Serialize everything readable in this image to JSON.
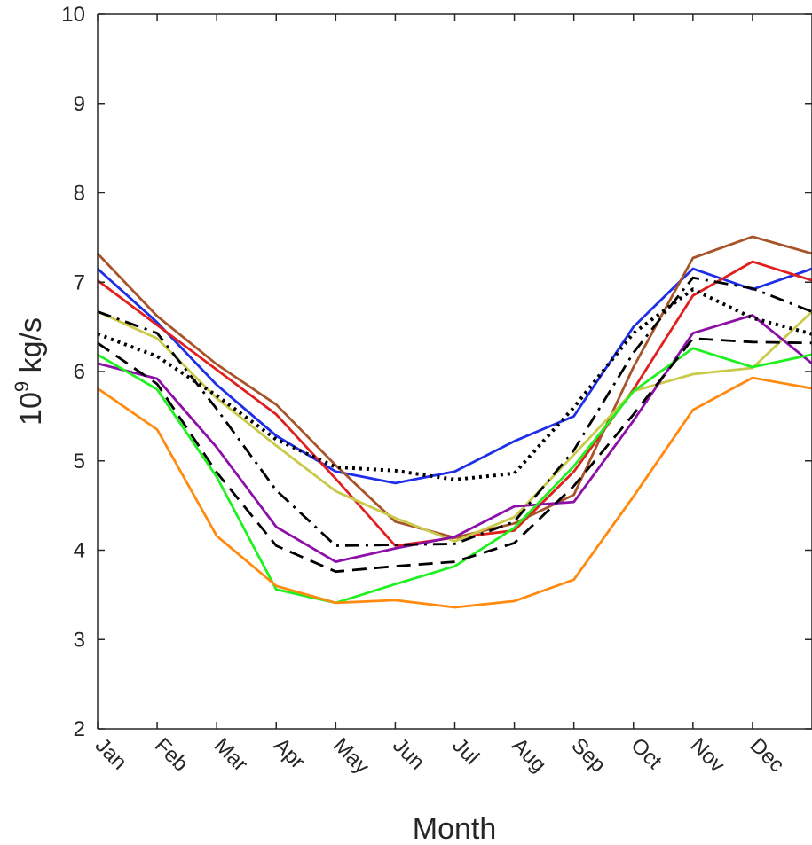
{
  "chart_data": {
    "type": "line",
    "title": "",
    "xlabel": "Month",
    "ylabel_base": "10",
    "ylabel_exp": "9",
    "ylabel_unit": " kg/s",
    "ylim": [
      2,
      10
    ],
    "xlim": [
      1,
      13
    ],
    "yticks": [
      2,
      3,
      4,
      5,
      6,
      7,
      8,
      9,
      10
    ],
    "categories": [
      "Jan",
      "Feb",
      "Mar",
      "Apr",
      "May",
      "Jun",
      "Jul",
      "Aug",
      "Sep",
      "Oct",
      "Nov",
      "Dec"
    ],
    "x": [
      1,
      2,
      3,
      4,
      5,
      6,
      7,
      8,
      9,
      10,
      11,
      12,
      13
    ],
    "grid": false,
    "series": [
      {
        "color": "#1f2ee8",
        "dash": "solid",
        "values": [
          7.15,
          6.55,
          5.85,
          5.28,
          4.88,
          4.75,
          4.88,
          5.22,
          5.5,
          6.5,
          7.15,
          6.92,
          7.15
        ]
      },
      {
        "color": "#e01f1f",
        "dash": "solid",
        "values": [
          7.02,
          6.52,
          6.02,
          5.52,
          4.8,
          4.05,
          4.14,
          4.22,
          4.88,
          5.8,
          6.85,
          7.23,
          7.02
        ]
      },
      {
        "color": "#a8542a",
        "dash": "solid",
        "values": [
          7.32,
          6.62,
          6.08,
          5.63,
          4.95,
          4.32,
          4.14,
          4.3,
          4.62,
          6.05,
          7.27,
          7.51,
          7.32
        ]
      },
      {
        "color": "#c9c94a",
        "dash": "solid",
        "values": [
          6.67,
          6.37,
          5.7,
          5.17,
          4.66,
          4.36,
          4.1,
          4.37,
          5.07,
          5.78,
          5.97,
          6.04,
          6.67
        ]
      },
      {
        "color": "#8c0fa8",
        "dash": "solid",
        "values": [
          6.09,
          5.92,
          5.15,
          4.26,
          3.87,
          4.02,
          4.15,
          4.49,
          4.54,
          5.45,
          6.43,
          6.63,
          6.09
        ]
      },
      {
        "color": "#1ff01f",
        "dash": "solid",
        "values": [
          6.19,
          5.8,
          4.82,
          3.56,
          3.41,
          3.62,
          3.82,
          4.25,
          4.94,
          5.78,
          6.26,
          6.05,
          6.19
        ]
      },
      {
        "color": "#ff8a0f",
        "dash": "solid",
        "values": [
          5.81,
          5.35,
          4.16,
          3.6,
          3.41,
          3.44,
          3.36,
          3.43,
          3.67,
          4.6,
          5.57,
          5.93,
          5.81
        ]
      },
      {
        "color": "#000000",
        "dash": "dashdot",
        "values": [
          6.67,
          6.43,
          5.58,
          4.67,
          4.05,
          4.06,
          4.07,
          4.32,
          5.12,
          6.21,
          7.05,
          6.93,
          6.67
        ]
      },
      {
        "color": "#000000",
        "dash": "dotted",
        "values": [
          6.42,
          6.17,
          5.73,
          5.24,
          4.93,
          4.89,
          4.79,
          4.86,
          5.6,
          6.43,
          6.92,
          6.6,
          6.42
        ]
      },
      {
        "color": "#000000",
        "dash": "dashed",
        "values": [
          6.32,
          5.86,
          4.87,
          4.05,
          3.76,
          3.82,
          3.87,
          4.08,
          4.72,
          5.52,
          6.37,
          6.33,
          6.32
        ]
      }
    ]
  }
}
